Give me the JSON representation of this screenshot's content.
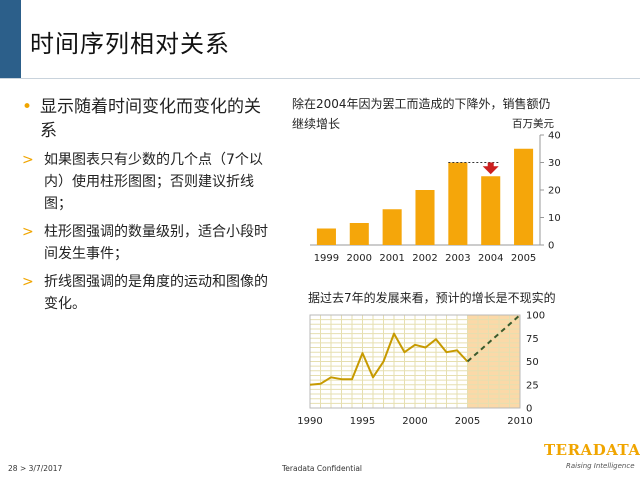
{
  "slide": {
    "title": "时间序列相对关系",
    "bullets": {
      "main": "显示随着时间变化而变化的关系",
      "subs": [
        "如果图表只有少数的几个点（7个以内）使用柱形图图；否则建议折线图；",
        "柱形图强调的数量级别，适合小段时间发生事件；",
        "折线图强调的是角度的运动和图像的变化。"
      ]
    },
    "footer": {
      "page": "28",
      "separator": ">",
      "date": "3/7/2017",
      "confidential": "Teradata Confidential"
    },
    "logo": {
      "word": "TERADATA.",
      "tagline": "Raising Intelligence"
    },
    "colors": {
      "accent": "#f0a500",
      "title_bar": "#2c5f8a",
      "down_arrow": "#cc1f1f",
      "forecast_band": "#fbd9a8"
    }
  },
  "chart_data": [
    {
      "type": "bar",
      "title": "除在2004年因为罢工而造成的下降外，销售额仍继续增长",
      "ylabel": "百万美元",
      "categories": [
        "1999",
        "2000",
        "2001",
        "2002",
        "2003",
        "2004",
        "2005"
      ],
      "values": [
        6,
        8,
        13,
        20,
        30,
        25,
        35
      ],
      "ylim": [
        0,
        40
      ],
      "yticks": [
        0,
        10,
        20,
        30,
        40
      ],
      "annotation": {
        "type": "down-arrow",
        "from_category": "2003",
        "to_category": "2004",
        "from": 30,
        "to": 25
      },
      "color": "#f5a60a"
    },
    {
      "type": "line",
      "title": "据过去7年的发展来看，预计的增长是不现实的",
      "x": [
        1990,
        1991,
        1992,
        1993,
        1994,
        1995,
        1996,
        1997,
        1998,
        1999,
        2000,
        2001,
        2002,
        2003,
        2004,
        2005
      ],
      "y": [
        25,
        26,
        33,
        31,
        31,
        59,
        33,
        50,
        80,
        60,
        68,
        65,
        74,
        60,
        62,
        50
      ],
      "forecast": {
        "x": [
          2005,
          2010
        ],
        "y": [
          50,
          100
        ]
      },
      "xlim": [
        1990,
        2010
      ],
      "ylim": [
        0,
        100
      ],
      "xticks": [
        1990,
        1995,
        2000,
        2005,
        2010
      ],
      "yticks": [
        0,
        25,
        50,
        75,
        100
      ],
      "grid": true,
      "forecast_band": [
        2005,
        2010
      ],
      "color": "#c79a00"
    }
  ]
}
